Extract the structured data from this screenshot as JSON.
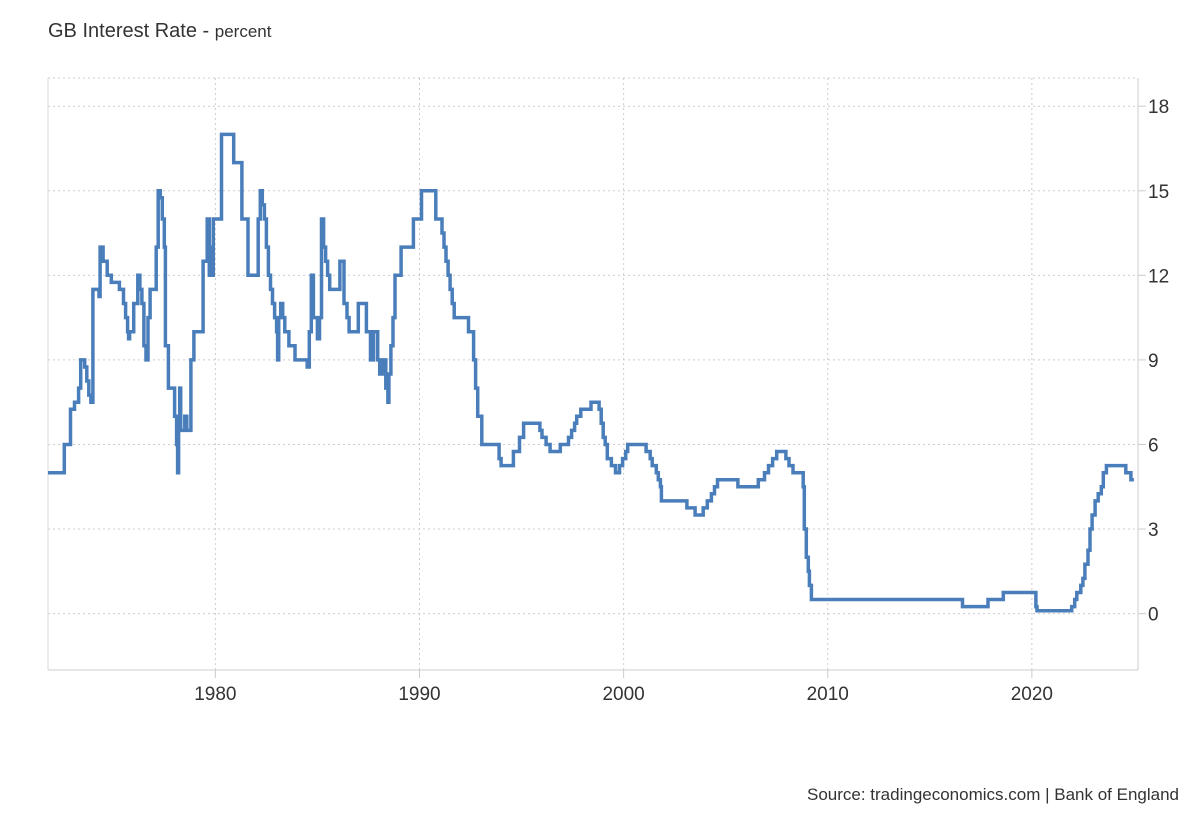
{
  "chart_data": {
    "type": "line",
    "title": "GB Interest Rate",
    "unit": "percent",
    "source": "Source: tradingeconomics.com | Bank of England",
    "grid": true,
    "y_axis_side": "right",
    "xlim": [
      1971.8,
      2025.2
    ],
    "ylim": [
      -2,
      19
    ],
    "x_ticks": [
      1980,
      1990,
      2000,
      2010,
      2020
    ],
    "y_ticks": [
      0,
      3,
      6,
      9,
      12,
      15,
      18
    ],
    "series": [
      {
        "color": "#4a7ebb",
        "interpolation": "step",
        "points": [
          [
            1971.8,
            5.0
          ],
          [
            1972.6,
            6.0
          ],
          [
            1972.9,
            7.25
          ],
          [
            1973.1,
            7.5
          ],
          [
            1973.3,
            8.0
          ],
          [
            1973.4,
            9.0
          ],
          [
            1973.6,
            8.75
          ],
          [
            1973.7,
            8.25
          ],
          [
            1973.8,
            7.75
          ],
          [
            1973.9,
            7.5
          ],
          [
            1974.0,
            11.5
          ],
          [
            1974.3,
            11.25
          ],
          [
            1974.35,
            13.0
          ],
          [
            1974.5,
            12.5
          ],
          [
            1974.7,
            12.0
          ],
          [
            1974.9,
            11.75
          ],
          [
            1975.3,
            11.5
          ],
          [
            1975.5,
            11.0
          ],
          [
            1975.6,
            10.5
          ],
          [
            1975.7,
            10.0
          ],
          [
            1975.75,
            9.75
          ],
          [
            1975.8,
            10.0
          ],
          [
            1976.0,
            11.0
          ],
          [
            1976.2,
            12.0
          ],
          [
            1976.3,
            11.5
          ],
          [
            1976.4,
            11.0
          ],
          [
            1976.5,
            9.5
          ],
          [
            1976.6,
            9.0
          ],
          [
            1976.7,
            10.5
          ],
          [
            1976.8,
            11.5
          ],
          [
            1977.1,
            13.0
          ],
          [
            1977.2,
            15.0
          ],
          [
            1977.3,
            14.75
          ],
          [
            1977.4,
            14.0
          ],
          [
            1977.5,
            13.0
          ],
          [
            1977.55,
            9.5
          ],
          [
            1977.7,
            8.0
          ],
          [
            1978.0,
            7.0
          ],
          [
            1978.1,
            6.0
          ],
          [
            1978.15,
            5.0
          ],
          [
            1978.2,
            6.5
          ],
          [
            1978.25,
            8.0
          ],
          [
            1978.3,
            6.5
          ],
          [
            1978.5,
            7.0
          ],
          [
            1978.6,
            6.5
          ],
          [
            1978.8,
            9.0
          ],
          [
            1978.95,
            10.0
          ],
          [
            1979.4,
            12.5
          ],
          [
            1979.6,
            14.0
          ],
          [
            1979.7,
            12.0
          ],
          [
            1979.75,
            13.0
          ],
          [
            1979.8,
            12.0
          ],
          [
            1979.9,
            14.0
          ],
          [
            1980.3,
            17.0
          ],
          [
            1980.9,
            16.0
          ],
          [
            1981.3,
            14.0
          ],
          [
            1981.6,
            12.0
          ],
          [
            1982.1,
            14.0
          ],
          [
            1982.2,
            15.0
          ],
          [
            1982.3,
            14.5
          ],
          [
            1982.4,
            14.0
          ],
          [
            1982.5,
            13.0
          ],
          [
            1982.6,
            12.0
          ],
          [
            1982.7,
            11.5
          ],
          [
            1982.8,
            11.0
          ],
          [
            1982.9,
            10.5
          ],
          [
            1983.0,
            10.0
          ],
          [
            1983.05,
            9.0
          ],
          [
            1983.1,
            10.5
          ],
          [
            1983.2,
            11.0
          ],
          [
            1983.3,
            10.5
          ],
          [
            1983.4,
            10.0
          ],
          [
            1983.6,
            9.5
          ],
          [
            1983.9,
            9.0
          ],
          [
            1984.5,
            8.75
          ],
          [
            1984.6,
            10.0
          ],
          [
            1984.7,
            12.0
          ],
          [
            1984.8,
            10.5
          ],
          [
            1985.0,
            9.75
          ],
          [
            1985.1,
            10.5
          ],
          [
            1985.2,
            14.0
          ],
          [
            1985.3,
            13.0
          ],
          [
            1985.4,
            12.5
          ],
          [
            1985.5,
            12.0
          ],
          [
            1985.6,
            11.5
          ],
          [
            1986.1,
            12.5
          ],
          [
            1986.3,
            11.0
          ],
          [
            1986.45,
            10.5
          ],
          [
            1986.55,
            10.0
          ],
          [
            1987.0,
            11.0
          ],
          [
            1987.4,
            10.0
          ],
          [
            1987.6,
            9.0
          ],
          [
            1987.75,
            10.0
          ],
          [
            1987.95,
            9.0
          ],
          [
            1988.05,
            8.5
          ],
          [
            1988.2,
            9.0
          ],
          [
            1988.35,
            8.0
          ],
          [
            1988.45,
            7.5
          ],
          [
            1988.5,
            8.5
          ],
          [
            1988.6,
            9.5
          ],
          [
            1988.7,
            10.5
          ],
          [
            1988.8,
            12.0
          ],
          [
            1989.1,
            13.0
          ],
          [
            1989.7,
            14.0
          ],
          [
            1990.1,
            15.0
          ],
          [
            1990.8,
            14.0
          ],
          [
            1991.1,
            13.5
          ],
          [
            1991.2,
            13.0
          ],
          [
            1991.3,
            12.5
          ],
          [
            1991.4,
            12.0
          ],
          [
            1991.5,
            11.5
          ],
          [
            1991.6,
            11.0
          ],
          [
            1991.7,
            10.5
          ],
          [
            1992.4,
            10.0
          ],
          [
            1992.65,
            9.0
          ],
          [
            1992.75,
            8.0
          ],
          [
            1992.85,
            7.0
          ],
          [
            1993.05,
            6.0
          ],
          [
            1993.9,
            5.5
          ],
          [
            1994.0,
            5.25
          ],
          [
            1994.6,
            5.75
          ],
          [
            1994.9,
            6.25
          ],
          [
            1995.1,
            6.75
          ],
          [
            1995.9,
            6.5
          ],
          [
            1996.0,
            6.25
          ],
          [
            1996.2,
            6.0
          ],
          [
            1996.4,
            5.75
          ],
          [
            1996.9,
            6.0
          ],
          [
            1997.3,
            6.25
          ],
          [
            1997.45,
            6.5
          ],
          [
            1997.6,
            6.75
          ],
          [
            1997.7,
            7.0
          ],
          [
            1997.9,
            7.25
          ],
          [
            1998.4,
            7.5
          ],
          [
            1998.8,
            7.25
          ],
          [
            1998.9,
            6.75
          ],
          [
            1999.0,
            6.25
          ],
          [
            1999.1,
            6.0
          ],
          [
            1999.2,
            5.5
          ],
          [
            1999.4,
            5.25
          ],
          [
            1999.6,
            5.0
          ],
          [
            1999.8,
            5.25
          ],
          [
            1999.95,
            5.5
          ],
          [
            2000.1,
            5.75
          ],
          [
            2000.2,
            6.0
          ],
          [
            2001.1,
            5.75
          ],
          [
            2001.3,
            5.5
          ],
          [
            2001.4,
            5.25
          ],
          [
            2001.6,
            5.0
          ],
          [
            2001.7,
            4.75
          ],
          [
            2001.8,
            4.5
          ],
          [
            2001.85,
            4.0
          ],
          [
            2003.1,
            3.75
          ],
          [
            2003.5,
            3.5
          ],
          [
            2003.9,
            3.75
          ],
          [
            2004.1,
            4.0
          ],
          [
            2004.3,
            4.25
          ],
          [
            2004.45,
            4.5
          ],
          [
            2004.6,
            4.75
          ],
          [
            2005.6,
            4.5
          ],
          [
            2006.6,
            4.75
          ],
          [
            2006.9,
            5.0
          ],
          [
            2007.1,
            5.25
          ],
          [
            2007.3,
            5.5
          ],
          [
            2007.5,
            5.75
          ],
          [
            2007.95,
            5.5
          ],
          [
            2008.1,
            5.25
          ],
          [
            2008.3,
            5.0
          ],
          [
            2008.8,
            4.5
          ],
          [
            2008.85,
            3.0
          ],
          [
            2008.95,
            2.0
          ],
          [
            2009.05,
            1.5
          ],
          [
            2009.1,
            1.0
          ],
          [
            2009.2,
            0.5
          ],
          [
            2016.6,
            0.25
          ],
          [
            2017.85,
            0.5
          ],
          [
            2018.6,
            0.75
          ],
          [
            2020.2,
            0.25
          ],
          [
            2020.25,
            0.1
          ],
          [
            2021.95,
            0.25
          ],
          [
            2022.1,
            0.5
          ],
          [
            2022.2,
            0.75
          ],
          [
            2022.4,
            1.0
          ],
          [
            2022.5,
            1.25
          ],
          [
            2022.6,
            1.75
          ],
          [
            2022.75,
            2.25
          ],
          [
            2022.85,
            3.0
          ],
          [
            2022.95,
            3.5
          ],
          [
            2023.1,
            4.0
          ],
          [
            2023.25,
            4.25
          ],
          [
            2023.4,
            4.5
          ],
          [
            2023.5,
            5.0
          ],
          [
            2023.65,
            5.25
          ],
          [
            2024.6,
            5.0
          ],
          [
            2024.85,
            4.75
          ],
          [
            2025.0,
            4.75
          ]
        ]
      }
    ]
  }
}
